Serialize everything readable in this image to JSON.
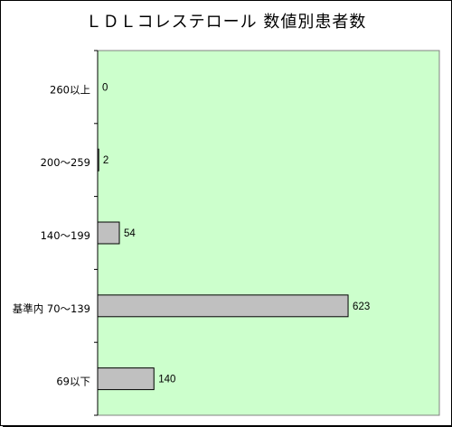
{
  "chart_data": {
    "type": "bar",
    "orientation": "horizontal",
    "title": "ＬＤＬコレステロール 数値別患者数",
    "categories": [
      "260以上",
      "200～259",
      "140～199",
      "基準内 70～139",
      "69以下"
    ],
    "values": [
      0,
      2,
      54,
      623,
      140
    ],
    "data_labels": [
      "0",
      "2",
      "54",
      "623",
      "140"
    ],
    "xlim": [
      0,
      850
    ],
    "grid": false,
    "legend": "none",
    "colors": {
      "plot_background": "#ccffcc",
      "bar_fill": "#c0c0c0",
      "bar_stroke": "#000000"
    }
  }
}
